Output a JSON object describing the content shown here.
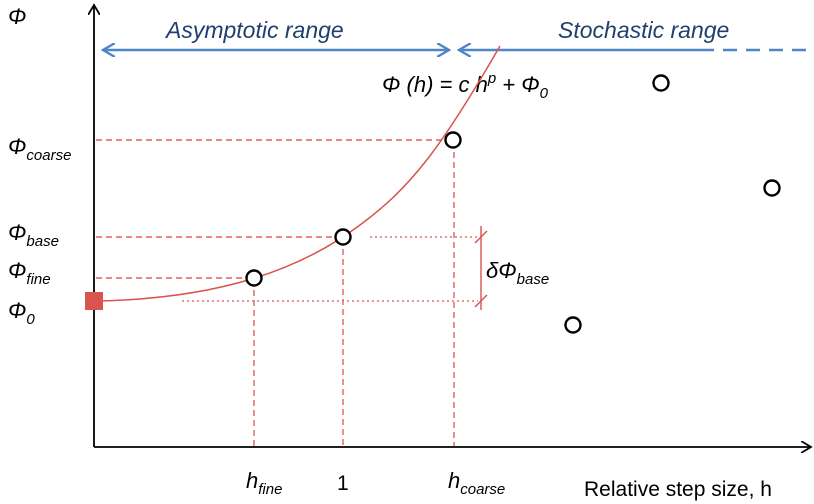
{
  "colors": {
    "axis": "#000000",
    "curve": "#d9534f",
    "guide_dashed": "#e06060",
    "guide_dotted": "#e07070",
    "range_arrow": "#4f86c6",
    "range_text": "#1f3f6e",
    "anchor_marker": "#d9534f"
  },
  "labels": {
    "y_axis_symbol": "Φ",
    "asymptotic_range": "Asymptotic range",
    "stochastic_range": "Stochastic range",
    "formula_main": "Φ (h) = c h",
    "formula_exp": "p",
    "formula_tail": " + Φ",
    "formula_tail_sub": "0",
    "phi_coarse": "Φ",
    "phi_coarse_sub": "coarse",
    "phi_base": "Φ",
    "phi_base_sub": "base",
    "phi_fine": "Φ",
    "phi_fine_sub": "fine",
    "phi_zero": "Φ",
    "phi_zero_sub": "0",
    "delta_phi": "δΦ",
    "delta_phi_sub": "base",
    "h_fine": "h",
    "h_fine_sub": "fine",
    "h_one": "1",
    "h_coarse": "h",
    "h_coarse_sub": "coarse",
    "x_axis_label": "Relative step size, h"
  }
}
